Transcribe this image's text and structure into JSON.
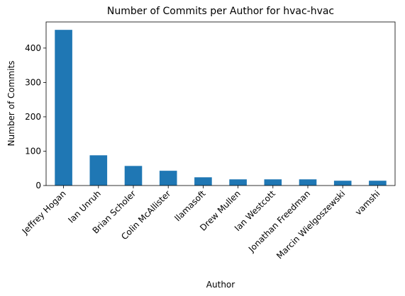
{
  "chart_data": {
    "type": "bar",
    "title": "Number of Commits per Author for hvac-hvac",
    "xlabel": "Author",
    "ylabel": "Number of Commits",
    "categories": [
      "Jeffrey Hogan",
      "Ian Unruh",
      "Brian Scholer",
      "Colin McAllister",
      "llamasoft",
      "Drew Mullen",
      "Ian Westcott",
      "Jonathan Freedman",
      "Marcin Wielgoszewski",
      "vamshi"
    ],
    "values": [
      453,
      88,
      57,
      43,
      24,
      18,
      18,
      18,
      14,
      14
    ],
    "ylim": [
      0,
      476
    ],
    "yticks": [
      0,
      100,
      200,
      300,
      400
    ],
    "grid": false,
    "legend": "none",
    "bar_color": "#1f77b4"
  }
}
